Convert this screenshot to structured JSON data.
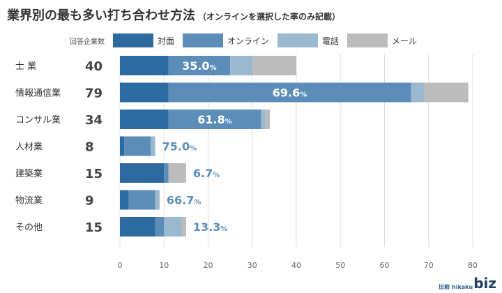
{
  "title": "業界別の最も多い打ち合わせ方法",
  "subtitle": "（オンラインを選択した率のみ記載）",
  "count_label": "回答企業数",
  "logo": {
    "small": "比較 hikaku",
    "big": "biz"
  },
  "colors": {
    "対面": "#2c6aa0",
    "オンライン": "#5b8db8",
    "電話": "#9ab8cf",
    "メール": "#bcbcbc",
    "pct_inside": "#ffffff",
    "pct_outside": "#5b8db8"
  },
  "chart_data": {
    "type": "bar",
    "orientation": "horizontal",
    "stacked": true,
    "categories": [
      "士 業",
      "情報通信業",
      "コンサル業",
      "人材業",
      "建築業",
      "物流業",
      "その他"
    ],
    "counts": [
      "40",
      "79",
      "34",
      "8",
      "15",
      "9",
      "15"
    ],
    "series": [
      {
        "name": "対面",
        "values": [
          11,
          11,
          11,
          1,
          10,
          2,
          8
        ]
      },
      {
        "name": "オンライン",
        "values": [
          14,
          55,
          21,
          6,
          1,
          6,
          2
        ]
      },
      {
        "name": "電話",
        "values": [
          5,
          3,
          1,
          1,
          0,
          1,
          4
        ]
      },
      {
        "name": "メール",
        "values": [
          10,
          10,
          1,
          0,
          4,
          0,
          1
        ]
      }
    ],
    "online_rate_labels": [
      "35.0",
      "69.6",
      "61.8",
      "75.0",
      "6.7",
      "66.7",
      "13.3"
    ],
    "percent_sign": "%",
    "xlim": [
      0,
      80
    ],
    "xticks": [
      "0",
      "10",
      "20",
      "30",
      "40",
      "50",
      "60",
      "70",
      "80"
    ],
    "grid": "vertical",
    "legend_position": "top"
  }
}
